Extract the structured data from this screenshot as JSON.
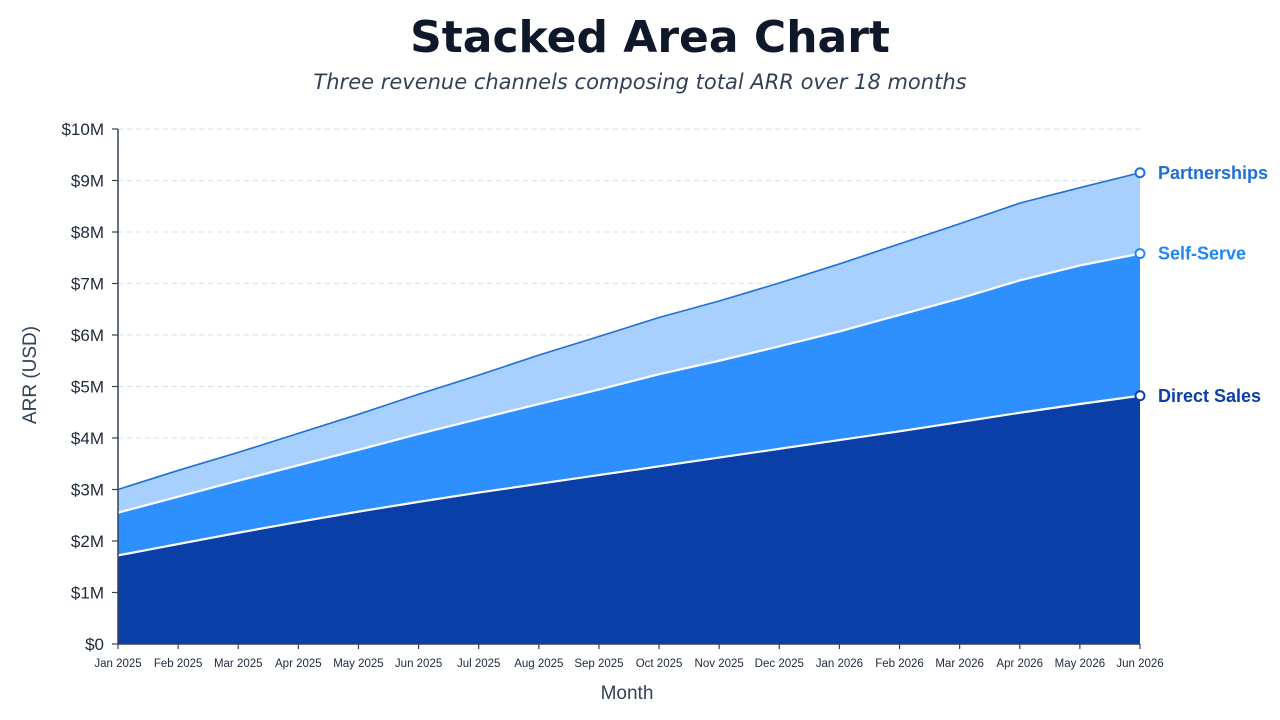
{
  "chart_data": {
    "type": "area",
    "stacked": true,
    "title": "Stacked Area Chart",
    "subtitle": "Three revenue channels composing total ARR over 18 months",
    "xlabel": "Month",
    "ylabel": "ARR (USD)",
    "ylim": [
      0,
      10
    ],
    "y_unit": "millions USD",
    "y_ticks": [
      0,
      1,
      2,
      3,
      4,
      5,
      6,
      7,
      8,
      9,
      10
    ],
    "y_tick_labels": [
      "$0",
      "$1M",
      "$2M",
      "$3M",
      "$4M",
      "$5M",
      "$6M",
      "$7M",
      "$8M",
      "$9M",
      "$10M"
    ],
    "grid": "horizontal dashed",
    "legend": "inline labels at right end of each series",
    "categories": [
      "Jan 2025",
      "Feb 2025",
      "Mar 2025",
      "Apr 2025",
      "May 2025",
      "Jun 2025",
      "Jul 2025",
      "Aug 2025",
      "Sep 2025",
      "Oct 2025",
      "Nov 2025",
      "Dec 2025",
      "Jan 2026",
      "Feb 2026",
      "Mar 2026",
      "Apr 2026",
      "May 2026",
      "Jun 2026"
    ],
    "series": [
      {
        "name": "Direct Sales",
        "color": "#0a3fa8",
        "values": [
          1.72,
          1.94,
          2.16,
          2.37,
          2.57,
          2.76,
          2.94,
          3.11,
          3.28,
          3.45,
          3.62,
          3.79,
          3.96,
          4.13,
          4.31,
          4.49,
          4.66,
          4.82
        ]
      },
      {
        "name": "Self-Serve",
        "color": "#2e90ff",
        "values": [
          0.83,
          0.92,
          1.01,
          1.1,
          1.2,
          1.32,
          1.43,
          1.55,
          1.66,
          1.79,
          1.88,
          1.99,
          2.11,
          2.26,
          2.4,
          2.57,
          2.69,
          2.76
        ]
      },
      {
        "name": "Partnerships",
        "color": "#a8d0ff",
        "values": [
          0.45,
          0.51,
          0.55,
          0.62,
          0.69,
          0.77,
          0.85,
          0.95,
          1.03,
          1.1,
          1.16,
          1.23,
          1.31,
          1.38,
          1.45,
          1.5,
          1.51,
          1.57
        ]
      }
    ]
  }
}
